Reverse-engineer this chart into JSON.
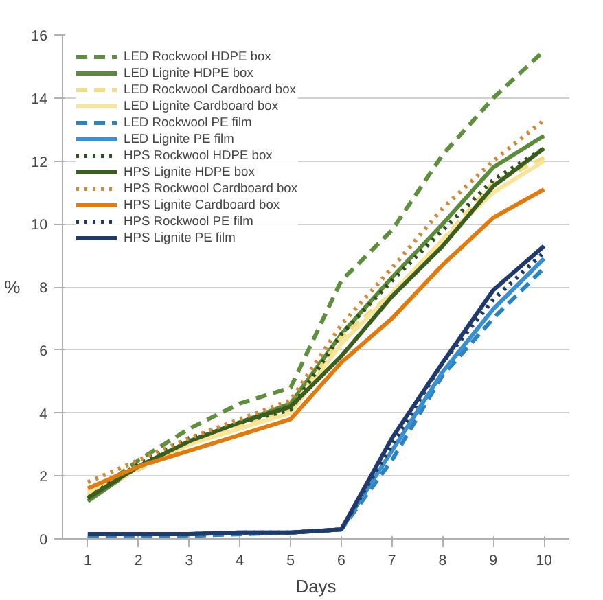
{
  "chart_data": {
    "type": "line",
    "xlabel": "Days",
    "ylabel": "%",
    "categories": [
      "1",
      "2",
      "3",
      "4",
      "5",
      "6",
      "7",
      "8",
      "9",
      "10"
    ],
    "ylim": [
      0,
      16
    ],
    "yticks": [
      0,
      2,
      4,
      6,
      8,
      10,
      12,
      14,
      16
    ],
    "grid": "y",
    "legend": "top left",
    "series": [
      {
        "name": "LED Rockwool HDPE box",
        "color": "#5f8f3e",
        "line_style": "dashed",
        "values": [
          1.3,
          2.5,
          3.5,
          4.3,
          4.8,
          8.2,
          9.8,
          12.2,
          14.0,
          15.5
        ]
      },
      {
        "name": "LED Lignite HDPE box",
        "color": "#5a8a3a",
        "line_style": "solid",
        "values": [
          1.2,
          2.3,
          3.1,
          3.7,
          4.3,
          6.5,
          8.3,
          10.0,
          11.8,
          12.8
        ]
      },
      {
        "name": "LED Rockwool Cardboard box",
        "color": "#f3dc86",
        "line_style": "dashed",
        "values": [
          1.4,
          2.2,
          3.0,
          3.6,
          4.1,
          6.4,
          7.8,
          9.5,
          11.3,
          12.1
        ]
      },
      {
        "name": "LED Lignite Cardboard box",
        "color": "#f7e69a",
        "line_style": "solid",
        "values": [
          1.5,
          2.3,
          3.0,
          3.5,
          4.0,
          6.2,
          7.8,
          9.5,
          11.0,
          12.0
        ]
      },
      {
        "name": "LED Rockwool PE film",
        "color": "#2b83c0",
        "line_style": "dashed",
        "values": [
          0.1,
          0.1,
          0.1,
          0.15,
          0.2,
          0.3,
          2.5,
          5.2,
          7.0,
          8.6
        ]
      },
      {
        "name": "LED Lignite PE film",
        "color": "#3a8fd0",
        "line_style": "solid",
        "values": [
          0.15,
          0.15,
          0.15,
          0.2,
          0.2,
          0.3,
          2.8,
          5.3,
          7.3,
          8.9
        ]
      },
      {
        "name": "HPS Rockwool HDPE box",
        "color": "#2f4f1f",
        "line_style": "dotted",
        "values": [
          1.3,
          2.4,
          3.2,
          3.7,
          4.1,
          6.5,
          8.2,
          9.8,
          11.4,
          12.4
        ]
      },
      {
        "name": "HPS Lignite HDPE box",
        "color": "#3b5e1f",
        "line_style": "solid",
        "values": [
          1.3,
          2.3,
          3.1,
          3.7,
          4.2,
          5.8,
          7.7,
          9.3,
          11.2,
          12.4
        ]
      },
      {
        "name": "HPS Rockwool Cardboard box",
        "color": "#d08a3c",
        "line_style": "dotted",
        "values": [
          1.8,
          2.5,
          3.2,
          3.8,
          4.4,
          6.8,
          8.6,
          10.5,
          12.0,
          13.3
        ]
      },
      {
        "name": "HPS Lignite Cardboard box",
        "color": "#e07b10",
        "line_style": "solid",
        "values": [
          1.6,
          2.3,
          2.8,
          3.3,
          3.8,
          5.6,
          7.0,
          8.7,
          10.2,
          11.1
        ]
      },
      {
        "name": "HPS Rockwool PE film",
        "color": "#1f3a5f",
        "line_style": "dotted",
        "values": [
          0.15,
          0.15,
          0.15,
          0.2,
          0.2,
          0.3,
          3.0,
          5.6,
          7.6,
          9.1
        ]
      },
      {
        "name": "HPS Lignite PE film",
        "color": "#1f3a6b",
        "line_style": "solid",
        "values": [
          0.15,
          0.15,
          0.15,
          0.2,
          0.2,
          0.3,
          3.2,
          5.6,
          7.9,
          9.3
        ]
      }
    ]
  }
}
